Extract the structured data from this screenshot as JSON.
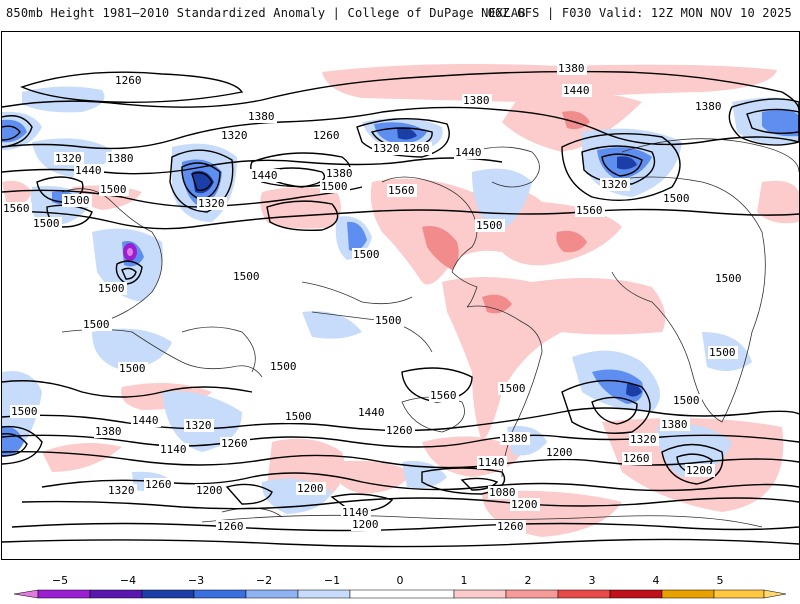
{
  "header": {
    "title": "850mb Height 1981–2010 Standardized Anomaly | College of DuPage NEXLAB",
    "run_info": "06Z GFS | F030 Valid: 12Z MON NOV 10 2025"
  },
  "map": {
    "variable": "850mb geopotential height (m) with standardized anomaly shading",
    "contour_labels": [
      "1260",
      "1380",
      "1440",
      "1380",
      "1380",
      "1380",
      "1320",
      "1260",
      "1320",
      "1260",
      "1440",
      "1320",
      "1320",
      "1380",
      "1440",
      "1440",
      "1500",
      "1380",
      "1500",
      "1560",
      "1500",
      "1320",
      "1560",
      "1500",
      "1500",
      "1560",
      "1500",
      "1500",
      "1500",
      "1500",
      "1500",
      "1500",
      "1500",
      "1500",
      "1500",
      "1500",
      "1500",
      "1560",
      "1500",
      "1500",
      "1500",
      "1260",
      "1440",
      "1440",
      "1320",
      "1380",
      "1380",
      "1260",
      "1320",
      "1260",
      "1200",
      "1440",
      "1140",
      "1200",
      "1320",
      "1260",
      "1200",
      "1260",
      "1080",
      "1200",
      "1140",
      "1200",
      "1260",
      "1380",
      "1320",
      "1200",
      "1380",
      "1140",
      "1260"
    ]
  },
  "colorbar": {
    "ticks": [
      "−5",
      "−4",
      "−3",
      "−2",
      "−1",
      "0",
      "1",
      "2",
      "3",
      "4",
      "5"
    ],
    "colors": [
      "#e27be0",
      "#9a1fd0",
      "#1b3fa6",
      "#3a6fe0",
      "#8fb3f2",
      "#c6dcfa",
      "#ffffff",
      "#fccbcb",
      "#f79a9a",
      "#e84a4a",
      "#c0101a",
      "#8b0000",
      "#ff9a00"
    ]
  }
}
